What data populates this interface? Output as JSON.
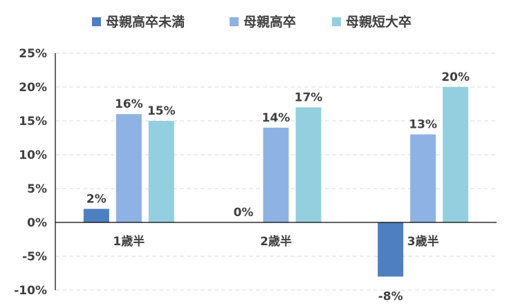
{
  "chart_data": {
    "type": "bar",
    "categories": [
      "1歳半",
      "2歳半",
      "3歳半"
    ],
    "series": [
      {
        "name": "母親高卒未満",
        "values": [
          2,
          0,
          -8
        ],
        "labels": [
          "2%",
          "0%",
          "-8%"
        ],
        "color": "#4e7fc0"
      },
      {
        "name": "母親高卒",
        "values": [
          16,
          14,
          13
        ],
        "labels": [
          "16%",
          "14%",
          "13%"
        ],
        "color": "#8eb2e3"
      },
      {
        "name": "母親短大卒",
        "values": [
          15,
          17,
          20
        ],
        "labels": [
          "15%",
          "17%",
          "20%"
        ],
        "color": "#94cfe0"
      }
    ],
    "ylim": [
      -10,
      25
    ],
    "yticks": [
      "-10%",
      "-5%",
      "0%",
      "5%",
      "10%",
      "15%",
      "20%",
      "25%"
    ],
    "grid": true,
    "legend_position": "top"
  }
}
